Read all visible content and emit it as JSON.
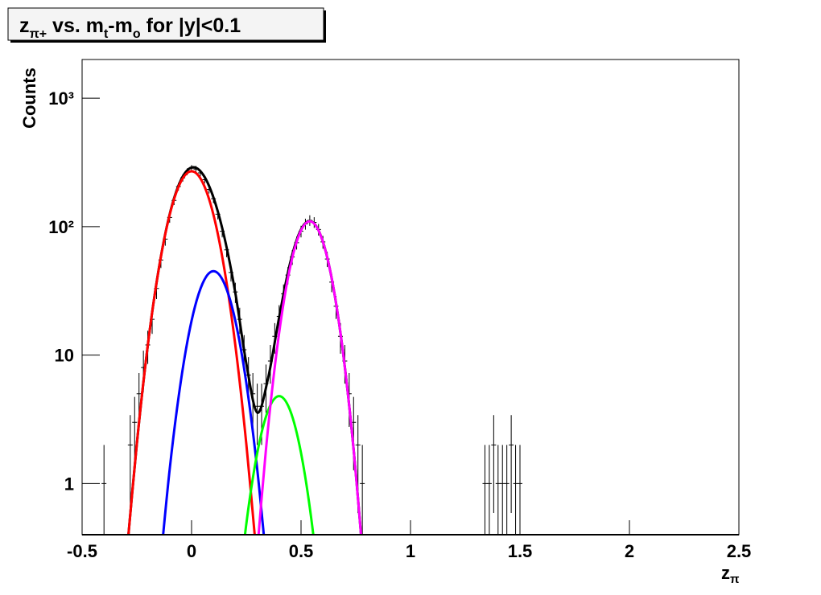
{
  "chart_data": {
    "type": "line",
    "title_parts": [
      "z",
      "π+",
      " vs. m",
      "t",
      "-m",
      "o",
      " for |y|<0.1"
    ],
    "x_label_parts": [
      "z",
      "π"
    ],
    "y_label": "Counts",
    "xlim": [
      -0.5,
      2.5
    ],
    "xticks": [
      -0.5,
      0,
      0.5,
      1,
      1.5,
      2,
      2.5
    ],
    "ylim": [
      0.4,
      2000
    ],
    "yticks": [
      1,
      10,
      {
        "value": 100,
        "label": "10²"
      },
      {
        "value": 1000,
        "label": "10³"
      }
    ],
    "log_y": true,
    "points": {
      "color": "#000000",
      "x": [
        -0.4,
        -0.28,
        -0.26,
        -0.24,
        -0.22,
        -0.2,
        -0.18,
        -0.16,
        -0.14,
        -0.12,
        -0.1,
        -0.08,
        -0.06,
        -0.04,
        -0.02,
        0.0,
        0.02,
        0.04,
        0.06,
        0.08,
        0.1,
        0.12,
        0.14,
        0.16,
        0.18,
        0.2,
        0.22,
        0.24,
        0.26,
        0.28,
        0.3,
        0.32,
        0.34,
        0.36,
        0.38,
        0.4,
        0.42,
        0.44,
        0.46,
        0.48,
        0.5,
        0.52,
        0.54,
        0.56,
        0.58,
        0.6,
        0.62,
        0.64,
        0.66,
        0.68,
        0.7,
        0.72,
        0.74,
        0.76,
        0.78,
        1.34,
        1.36,
        1.38,
        1.4,
        1.42,
        1.44,
        1.46,
        1.48,
        1.5
      ],
      "values": [
        1,
        2,
        3,
        5,
        8,
        12,
        19,
        33,
        55,
        80,
        118,
        160,
        205,
        240,
        268,
        285,
        280,
        262,
        232,
        195,
        165,
        125,
        92,
        66,
        44,
        31,
        19,
        11,
        7,
        5,
        4,
        4,
        6,
        9,
        14,
        20,
        30,
        42,
        58,
        75,
        92,
        105,
        112,
        108,
        95,
        76,
        56,
        37,
        24,
        14,
        9,
        5,
        3,
        2,
        1,
        1,
        1,
        2,
        1,
        1,
        1,
        2,
        1,
        1
      ],
      "errors": [
        1,
        1.41,
        1.73,
        2.24,
        2.83,
        3.46,
        4.36,
        5.74,
        7.42,
        8.94,
        10.86,
        12.65,
        14.32,
        15.49,
        16.37,
        16.88,
        16.73,
        16.19,
        15.23,
        13.96,
        12.85,
        11.18,
        9.59,
        8.12,
        6.63,
        5.57,
        4.36,
        3.32,
        2.65,
        2.24,
        2,
        2,
        2.45,
        3,
        3.74,
        4.47,
        5.48,
        6.48,
        7.62,
        8.66,
        9.59,
        10.25,
        10.58,
        10.39,
        9.75,
        8.72,
        7.48,
        6.08,
        4.9,
        3.74,
        3,
        2.24,
        1.73,
        1.41,
        1,
        1,
        1,
        1.41,
        1,
        1,
        1,
        1.41,
        1,
        1
      ]
    },
    "series": [
      {
        "color": "#000000",
        "x": [
          -0.3,
          -0.25,
          -0.2,
          -0.15,
          -0.1,
          -0.05,
          0.0,
          0.05,
          0.1,
          0.15,
          0.2,
          0.25,
          0.3,
          0.35,
          0.4,
          0.45,
          0.5,
          0.55,
          0.6,
          0.65,
          0.7,
          0.75,
          0.8
        ],
        "values": [
          0.24,
          2.04,
          11.9,
          46.7,
          124.9,
          228,
          288.5,
          258,
          168.6,
          82.5,
          30.4,
          8.63,
          3.57,
          6.68,
          19.7,
          51.9,
          95.1,
          109.4,
          76.3,
          32.0,
          8.09,
          1.22,
          0.111
        ]
      },
      {
        "color": "#ff0000",
        "x": [
          -0.3,
          -0.25,
          -0.2,
          -0.15,
          -0.1,
          -0.05,
          0.0,
          0.05,
          0.1,
          0.15,
          0.2,
          0.25,
          0.3
        ],
        "values": [
          0.239,
          2.04,
          11.9,
          46.5,
          123.6,
          222,
          270,
          222,
          123.6,
          46.5,
          11.9,
          2.04,
          0.239
        ]
      },
      {
        "color": "#0000ff",
        "x": [
          -0.15,
          -0.1,
          -0.05,
          0.0,
          0.05,
          0.1,
          0.15,
          0.2,
          0.25,
          0.3,
          0.35
        ],
        "values": [
          0.174,
          1.29,
          6.09,
          18.5,
          36.0,
          45,
          36.0,
          18.5,
          6.09,
          1.29,
          0.174
        ]
      },
      {
        "color": "#00ff00",
        "x": [
          0.2,
          0.25,
          0.3,
          0.35,
          0.4,
          0.45,
          0.5,
          0.55,
          0.6
        ],
        "values": [
          0.081,
          0.484,
          1.73,
          3.72,
          4.8,
          3.72,
          1.73,
          0.484,
          0.081
        ]
      },
      {
        "color": "#ff00ff",
        "x": [
          0.29,
          0.34,
          0.39,
          0.44,
          0.49,
          0.54,
          0.59,
          0.64,
          0.69,
          0.74,
          0.79
        ],
        "values": [
          0.187,
          1.86,
          11.1,
          39.7,
          85.2,
          110,
          85.2,
          39.7,
          11.1,
          1.86,
          0.187
        ]
      }
    ]
  }
}
